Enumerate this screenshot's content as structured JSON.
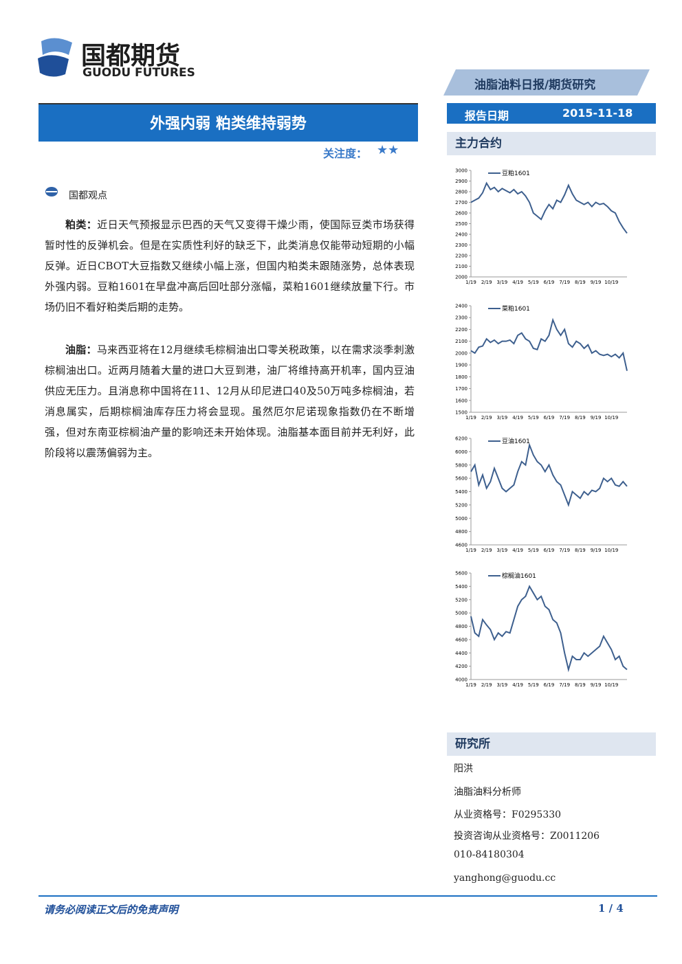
{
  "header": {
    "logo_cn": "国都期货",
    "logo_en": "GUODU FUTURES",
    "category": "油脂油料日报/期货研究",
    "title": "外强内弱 粕类维持弱势",
    "attention_label": "关注度：",
    "attention_stars": "★★",
    "date_label": "报告日期",
    "date": "2015-11-18"
  },
  "sidebar": {
    "contracts_title": "主力合约",
    "research_title": "研究所",
    "research_lines": [
      "阳洪",
      "油脂油料分析师",
      "从业资格号：F0295330",
      "投资咨询从业资格号：Z0011206",
      "010-84180304",
      "yanghong@guodu.cc"
    ]
  },
  "section": {
    "title": "国都观点",
    "paragraphs": [
      {
        "label": "粕类：",
        "text": "近日天气预报显示巴西的天气又变得干燥少雨，使国际豆类市场获得暂时性的反弹机会。但是在实质性利好的缺乏下，此类消息仅能带动短期的小幅反弹。近日CBOT大豆指数又继续小幅上涨，但国内粕类未跟随涨势，总体表现外强内弱。豆粕1601在早盘冲高后回吐部分涨幅，菜粕1601继续放量下行。市场仍旧不看好粕类后期的走势。"
      },
      {
        "label": "油脂：",
        "text": "马来西亚将在12月继续毛棕榈油出口零关税政策，以在需求淡季刺激棕榈油出口。近两月随着大量的进口大豆到港，油厂将维持高开机率，国内豆油供应无压力。且消息称中国将在11、12月从印尼进口40及50万吨多棕榈油，若消息属实，后期棕榈油库存压力将会显现。虽然厄尔尼诺现象指数仍在不断增强，但对东南亚棕榈油产量的影响还未开始体现。油脂基本面目前并无利好，此阶段将以震荡偏弱为主。"
      }
    ]
  },
  "footer": {
    "disclaimer": "请务必阅读正文后的免责声明",
    "page": "1 / 4"
  },
  "chart_data": [
    {
      "type": "line",
      "categories": [
        "1/19",
        null,
        null,
        null,
        "2/19",
        null,
        null,
        null,
        "3/19",
        null,
        null,
        null,
        "4/19",
        null,
        null,
        null,
        "5/19",
        null,
        null,
        null,
        "6/19",
        null,
        null,
        null,
        "7/19",
        null,
        null,
        null,
        "8/19",
        null,
        null,
        null,
        "9/19",
        null,
        null,
        null,
        "10/19",
        null,
        null,
        null,
        null
      ],
      "series": [
        {
          "name": "豆粕1601",
          "color": "#3d5f8e",
          "values": [
            2700,
            2720,
            2740,
            2790,
            2880,
            2820,
            2840,
            2800,
            2830,
            2810,
            2790,
            2820,
            2780,
            2800,
            2760,
            2700,
            2600,
            2570,
            2540,
            2620,
            2680,
            2640,
            2720,
            2700,
            2770,
            2860,
            2780,
            2720,
            2700,
            2680,
            2700,
            2660,
            2700,
            2680,
            2690,
            2660,
            2620,
            2600,
            2520,
            2460,
            2410
          ]
        }
      ],
      "ylim": [
        2000,
        3000
      ],
      "yticks": [
        2000,
        2100,
        2200,
        2300,
        2400,
        2500,
        2600,
        2700,
        2800,
        2900,
        3000
      ]
    },
    {
      "type": "line",
      "categories": [
        "1/19",
        null,
        null,
        null,
        "2/19",
        null,
        null,
        null,
        "3/19",
        null,
        null,
        null,
        "4/19",
        null,
        null,
        null,
        "5/19",
        null,
        null,
        null,
        "6/19",
        null,
        null,
        null,
        "7/19",
        null,
        null,
        null,
        "8/19",
        null,
        null,
        null,
        "9/19",
        null,
        null,
        null,
        "10/19",
        null,
        null,
        null,
        null
      ],
      "series": [
        {
          "name": "菜粕1601",
          "color": "#3d5f8e",
          "values": [
            2020,
            2000,
            2050,
            2060,
            2120,
            2090,
            2110,
            2080,
            2100,
            2100,
            2110,
            2080,
            2150,
            2170,
            2120,
            2100,
            2040,
            2030,
            2120,
            2100,
            2150,
            2280,
            2200,
            2150,
            2200,
            2080,
            2050,
            2100,
            2080,
            2040,
            2070,
            2000,
            2020,
            1990,
            1980,
            1990,
            1970,
            1990,
            1960,
            2000,
            1850
          ]
        }
      ],
      "ylim": [
        1500,
        2400
      ],
      "yticks": [
        1500,
        1600,
        1700,
        1800,
        1900,
        2000,
        2100,
        2200,
        2300,
        2400
      ]
    },
    {
      "type": "line",
      "categories": [
        "1/19",
        null,
        null,
        null,
        "2/19",
        null,
        null,
        null,
        "3/19",
        null,
        null,
        null,
        "4/19",
        null,
        null,
        null,
        "5/19",
        null,
        null,
        null,
        "6/19",
        null,
        null,
        null,
        "7/19",
        null,
        null,
        null,
        "8/19",
        null,
        null,
        null,
        "9/19",
        null,
        null,
        null,
        "10/19",
        null,
        null,
        null,
        null
      ],
      "series": [
        {
          "name": "豆油1601",
          "color": "#3d5f8e",
          "values": [
            5700,
            5800,
            5500,
            5650,
            5450,
            5550,
            5750,
            5600,
            5450,
            5400,
            5450,
            5500,
            5700,
            5850,
            5800,
            6100,
            5950,
            5850,
            5800,
            5700,
            5800,
            5650,
            5550,
            5500,
            5350,
            5200,
            5400,
            5350,
            5300,
            5400,
            5350,
            5420,
            5400,
            5450,
            5600,
            5550,
            5600,
            5500,
            5480,
            5550,
            5480
          ]
        }
      ],
      "ylim": [
        4600,
        6200
      ],
      "yticks": [
        4600,
        4800,
        5000,
        5200,
        5400,
        5600,
        5800,
        6000,
        6200
      ]
    },
    {
      "type": "line",
      "categories": [
        "1/19",
        null,
        null,
        null,
        "2/19",
        null,
        null,
        null,
        "3/19",
        null,
        null,
        null,
        "4/19",
        null,
        null,
        null,
        "5/19",
        null,
        null,
        null,
        "6/19",
        null,
        null,
        null,
        "7/19",
        null,
        null,
        null,
        "8/19",
        null,
        null,
        null,
        "9/19",
        null,
        null,
        null,
        "10/19",
        null,
        null,
        null,
        null
      ],
      "series": [
        {
          "name": "棕榈油1601",
          "color": "#3d5f8e",
          "values": [
            4950,
            4700,
            4650,
            4900,
            4820,
            4750,
            4600,
            4700,
            4650,
            4720,
            4700,
            4900,
            5100,
            5200,
            5250,
            5400,
            5300,
            5200,
            5250,
            5100,
            5050,
            4900,
            4850,
            4700,
            4400,
            4150,
            4350,
            4300,
            4300,
            4400,
            4350,
            4400,
            4450,
            4500,
            4650,
            4550,
            4450,
            4300,
            4350,
            4200,
            4150
          ]
        }
      ],
      "ylim": [
        4000,
        5600
      ],
      "yticks": [
        4000,
        4200,
        4400,
        4600,
        4800,
        5000,
        5200,
        5400,
        5600
      ]
    }
  ]
}
